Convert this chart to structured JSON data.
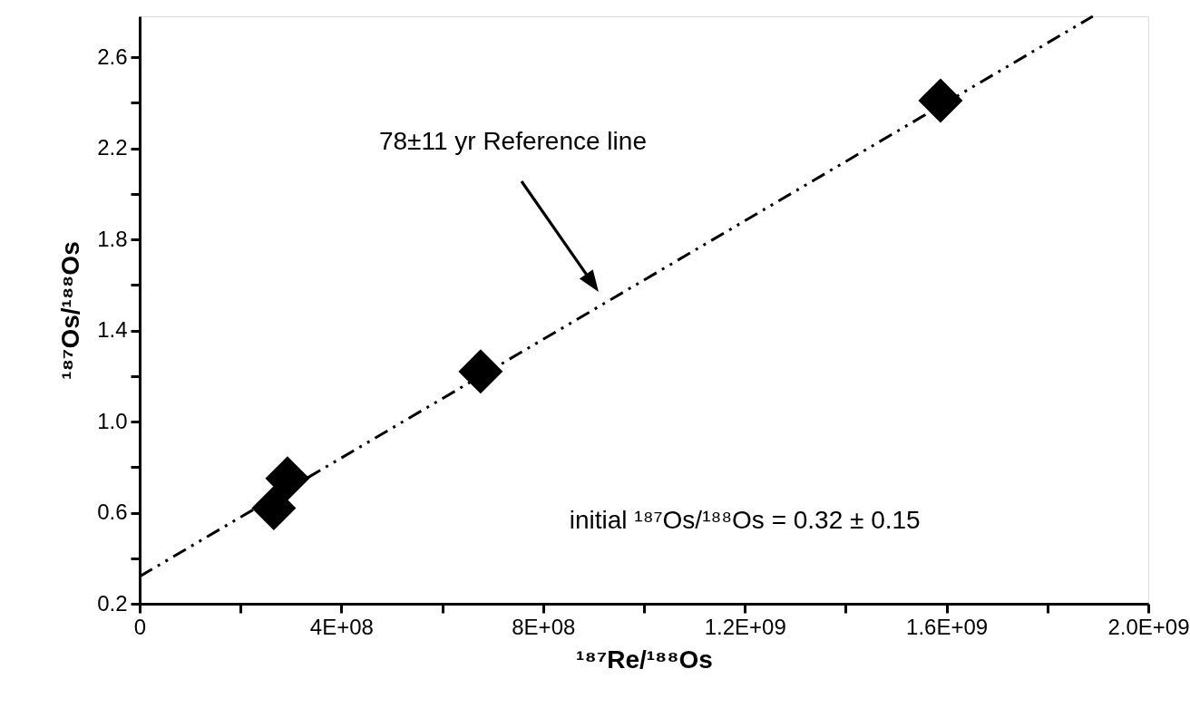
{
  "chart_data": {
    "type": "scatter",
    "xlabel": "¹⁸⁷Re/¹⁸⁸Os",
    "ylabel": "¹⁸⁷Os/¹⁸⁸Os",
    "xlim": [
      0,
      2000000000
    ],
    "ylim": [
      0.2,
      2.78
    ],
    "xticks": [
      {
        "value": 0,
        "label": "0"
      },
      {
        "value": 200000000,
        "label": null
      },
      {
        "value": 400000000,
        "label": "4E+08"
      },
      {
        "value": 600000000,
        "label": null
      },
      {
        "value": 800000000,
        "label": "8E+08"
      },
      {
        "value": 1000000000,
        "label": null
      },
      {
        "value": 1200000000,
        "label": "1.2E+09"
      },
      {
        "value": 1400000000,
        "label": null
      },
      {
        "value": 1600000000,
        "label": "1.6E+09"
      },
      {
        "value": 1800000000,
        "label": null
      },
      {
        "value": 2000000000,
        "label": "2.0E+09"
      }
    ],
    "yticks": [
      {
        "value": 0.2,
        "label": "0.2"
      },
      {
        "value": 0.4,
        "label": null
      },
      {
        "value": 0.6,
        "label": "0.6"
      },
      {
        "value": 0.8,
        "label": null
      },
      {
        "value": 1.0,
        "label": "1.0"
      },
      {
        "value": 1.2,
        "label": null
      },
      {
        "value": 1.4,
        "label": "1.4"
      },
      {
        "value": 1.6,
        "label": null
      },
      {
        "value": 1.8,
        "label": "1.8"
      },
      {
        "value": 2.0,
        "label": null
      },
      {
        "value": 2.2,
        "label": "2.2"
      },
      {
        "value": 2.4,
        "label": null
      },
      {
        "value": 2.6,
        "label": "2.6"
      }
    ],
    "grid": false,
    "series": [
      {
        "marker": "diamond",
        "color": "#000000",
        "x": [
          266000000,
          293000000,
          676000000,
          1588000000
        ],
        "values": [
          0.62,
          0.75,
          1.22,
          2.41
        ]
      },
      {
        "type": "line",
        "line_style": "dashed",
        "marker": "none",
        "color": "#000000",
        "x": [
          0,
          1890000000
        ],
        "values": [
          0.32,
          2.78
        ]
      }
    ],
    "annotations": [
      "78±11 yr Reference line",
      "initial ¹⁸⁷Os/¹⁸⁸Os = 0.32 ± 0.15"
    ]
  }
}
